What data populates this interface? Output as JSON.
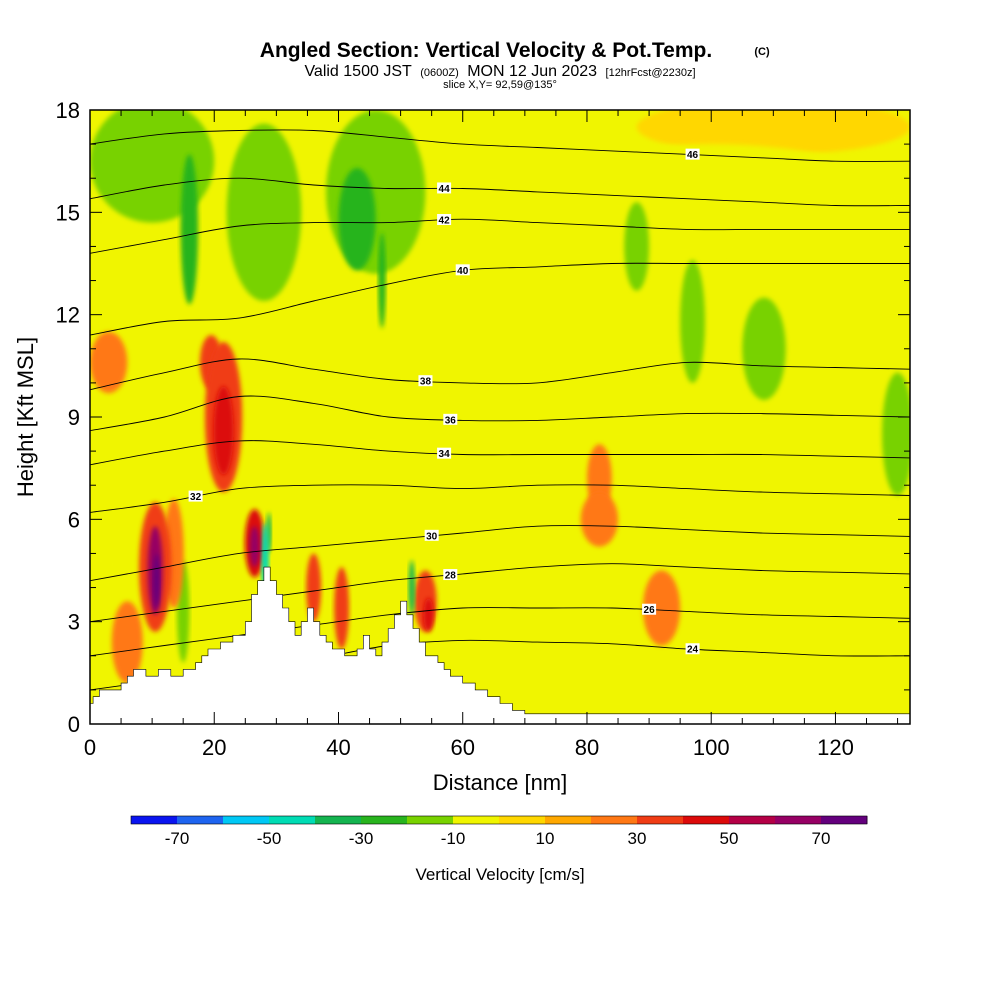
{
  "chart_data": {
    "type": "heatmap",
    "title": "Angled Section: Vertical Velocity & Pot.Temp.",
    "title_mark": "(C)",
    "subtitle": {
      "valid_time": "Valid 1500 JST",
      "utc": "(0600Z)",
      "date": "MON 12 Jun 2023",
      "forecast": "[12hrFcst@2230z]"
    },
    "slice_label": "slice X,Y= 92,59@135°",
    "xlabel": "Distance [nm]",
    "ylabel": "Height [Kft MSL]",
    "xlim": [
      0,
      132
    ],
    "ylim": [
      0,
      18
    ],
    "x_ticks": [
      "0",
      "20",
      "40",
      "60",
      "80",
      "100",
      "120"
    ],
    "x_tick_values": [
      0,
      20,
      40,
      60,
      80,
      100,
      120
    ],
    "y_ticks": [
      "0",
      "3",
      "6",
      "9",
      "12",
      "15",
      "18"
    ],
    "y_tick_values": [
      0,
      3,
      6,
      9,
      12,
      15,
      18
    ],
    "grid": false,
    "colorbar": {
      "label": "Vertical Velocity [cm/s]",
      "min": -80,
      "max": 80,
      "step": 10,
      "tick_labels": [
        "-70",
        "-50",
        "-30",
        "-10",
        "10",
        "30",
        "50",
        "70"
      ],
      "tick_values": [
        -70,
        -50,
        -30,
        -10,
        10,
        30,
        50,
        70
      ],
      "colors": [
        "#0a14f0",
        "#1e64f0",
        "#00c8f5",
        "#00dcb4",
        "#14b450",
        "#28b41e",
        "#78d200",
        "#f0f500",
        "#ffd700",
        "#ffa800",
        "#ff7814",
        "#f03c14",
        "#dc0a0a",
        "#b40046",
        "#960064",
        "#64007d"
      ]
    },
    "background_color": "#f0f500",
    "terrain": {
      "x": [
        0,
        0.5,
        0.5,
        1.5,
        1.5,
        5,
        5,
        6,
        6,
        7,
        7,
        9,
        9,
        11,
        11,
        13,
        13,
        15,
        15,
        17,
        17,
        18,
        18,
        19,
        19,
        21,
        21,
        23,
        23,
        25,
        25,
        26,
        26,
        27,
        27,
        28,
        28,
        29,
        29,
        30,
        30,
        31,
        31,
        32,
        32,
        33,
        33,
        34,
        34,
        35,
        35,
        36,
        36,
        37,
        37,
        38,
        38,
        39,
        39,
        41,
        41,
        43,
        43,
        44,
        44,
        45,
        45,
        46,
        46,
        47,
        47,
        48,
        48,
        49,
        49,
        50,
        50,
        51,
        51,
        52,
        52,
        53,
        53,
        54,
        54,
        56,
        56,
        57,
        57,
        58,
        58,
        60,
        60,
        62,
        62,
        64,
        64,
        66,
        66,
        68,
        68,
        70,
        70,
        71,
        71,
        72,
        72,
        132
      ],
      "y": [
        0.6,
        0.6,
        0.8,
        0.8,
        1.0,
        1.0,
        1.2,
        1.2,
        1.4,
        1.4,
        1.6,
        1.6,
        1.4,
        1.4,
        1.6,
        1.6,
        1.4,
        1.4,
        1.6,
        1.6,
        1.8,
        1.8,
        2.0,
        2.0,
        2.2,
        2.2,
        2.4,
        2.4,
        2.6,
        2.6,
        3.0,
        3.0,
        3.8,
        3.8,
        4.2,
        4.2,
        4.6,
        4.6,
        4.2,
        4.2,
        3.8,
        3.8,
        3.4,
        3.4,
        3.0,
        3.0,
        2.6,
        2.6,
        3.0,
        3.0,
        3.4,
        3.4,
        3.0,
        3.0,
        2.6,
        2.6,
        2.4,
        2.4,
        2.2,
        2.2,
        2.0,
        2.0,
        2.2,
        2.2,
        2.6,
        2.6,
        2.2,
        2.2,
        2.0,
        2.0,
        2.4,
        2.4,
        2.8,
        2.8,
        3.2,
        3.2,
        3.6,
        3.6,
        3.2,
        3.2,
        2.8,
        2.8,
        2.4,
        2.4,
        2.0,
        2.0,
        1.8,
        1.8,
        1.6,
        1.6,
        1.4,
        1.4,
        1.2,
        1.2,
        1.0,
        1.0,
        0.8,
        0.8,
        0.6,
        0.6,
        0.4,
        0.4,
        0.3,
        0.3,
        0.3,
        0.3,
        0.3,
        0.3
      ]
    },
    "vertical_velocity_blobs": [
      {
        "x": 10.5,
        "y": 4.6,
        "rx": 2.6,
        "ry": 1.9,
        "value": 35
      },
      {
        "x": 10.5,
        "y": 4.5,
        "rx": 1.2,
        "ry": 1.3,
        "value": 60
      },
      {
        "x": 10.7,
        "y": 4.2,
        "rx": 0.5,
        "ry": 0.8,
        "value": 75
      },
      {
        "x": 26.5,
        "y": 5.3,
        "rx": 1.6,
        "ry": 1.0,
        "value": 40
      },
      {
        "x": 26.5,
        "y": 5.2,
        "rx": 0.8,
        "ry": 0.6,
        "value": 65
      },
      {
        "x": 21.5,
        "y": 9.0,
        "rx": 3.0,
        "ry": 2.2,
        "value": 35
      },
      {
        "x": 21.5,
        "y": 8.6,
        "rx": 1.6,
        "ry": 1.3,
        "value": 45
      },
      {
        "x": 19.5,
        "y": 10.6,
        "rx": 1.8,
        "ry": 0.8,
        "value": 30
      },
      {
        "x": 6.0,
        "y": 2.4,
        "rx": 2.5,
        "ry": 1.2,
        "value": 25
      },
      {
        "x": 13.5,
        "y": 5.0,
        "rx": 1.6,
        "ry": 1.6,
        "value": 25
      },
      {
        "x": 36.0,
        "y": 4.0,
        "rx": 1.2,
        "ry": 1.0,
        "value": 30
      },
      {
        "x": 40.5,
        "y": 3.4,
        "rx": 1.2,
        "ry": 1.2,
        "value": 30
      },
      {
        "x": 54.0,
        "y": 3.6,
        "rx": 1.8,
        "ry": 0.9,
        "value": 30
      },
      {
        "x": 54.5,
        "y": 3.2,
        "rx": 0.8,
        "ry": 0.5,
        "value": 45
      },
      {
        "x": 3.0,
        "y": 10.6,
        "rx": 3.0,
        "ry": 0.9,
        "value": 25
      },
      {
        "x": 82.0,
        "y": 7.2,
        "rx": 2.0,
        "ry": 1.0,
        "value": 20
      },
      {
        "x": 82.0,
        "y": 6.0,
        "rx": 3.0,
        "ry": 0.8,
        "value": 20
      },
      {
        "x": 92.0,
        "y": 3.4,
        "rx": 3.0,
        "ry": 1.1,
        "value": 20
      },
      {
        "x": 15.0,
        "y": 3.3,
        "rx": 1.0,
        "ry": 1.5,
        "value": -20
      },
      {
        "x": 28.2,
        "y": 4.8,
        "rx": 0.6,
        "ry": 1.1,
        "value": -50
      },
      {
        "x": 28.8,
        "y": 5.6,
        "rx": 0.4,
        "ry": 0.6,
        "value": -35
      },
      {
        "x": 51.8,
        "y": 4.0,
        "rx": 0.5,
        "ry": 0.8,
        "value": -40
      },
      {
        "x": 47.0,
        "y": 13.0,
        "rx": 0.6,
        "ry": 1.4,
        "value": -30
      },
      {
        "x": 16.0,
        "y": 14.5,
        "rx": 1.4,
        "ry": 2.2,
        "value": -30
      },
      {
        "x": 43.0,
        "y": 14.8,
        "rx": 3.0,
        "ry": 1.5,
        "value": -25
      },
      {
        "x": 88.0,
        "y": 14.0,
        "rx": 2.0,
        "ry": 1.3,
        "value": -20
      },
      {
        "x": 97.0,
        "y": 11.8,
        "rx": 2.0,
        "ry": 1.8,
        "value": -20
      },
      {
        "x": 108.5,
        "y": 11.0,
        "rx": 3.5,
        "ry": 1.5,
        "value": -20
      },
      {
        "x": 130.0,
        "y": 8.5,
        "rx": 2.5,
        "ry": 1.8,
        "value": -20
      },
      {
        "x": 10.0,
        "y": 16.5,
        "rx": 10.0,
        "ry": 1.8,
        "value": -20
      },
      {
        "x": 28.0,
        "y": 15.0,
        "rx": 6.0,
        "ry": 2.6,
        "value": -20
      },
      {
        "x": 46.0,
        "y": 15.6,
        "rx": 8.0,
        "ry": 2.4,
        "value": -20
      },
      {
        "x": 70.0,
        "y": 15.5,
        "rx": 10.0,
        "ry": 2.5,
        "value": -10
      },
      {
        "x": 100.0,
        "y": 15.4,
        "rx": 30.0,
        "ry": 1.6,
        "value": -10
      },
      {
        "x": 66.0,
        "y": 12.0,
        "rx": 14.0,
        "ry": 1.6,
        "value": -10
      },
      {
        "x": 100.0,
        "y": 9.5,
        "rx": 30.0,
        "ry": 2.5,
        "value": -10
      },
      {
        "x": 95.0,
        "y": 6.2,
        "rx": 35.0,
        "ry": 1.4,
        "value": -10
      },
      {
        "x": 105.0,
        "y": 3.8,
        "rx": 25.0,
        "ry": 1.4,
        "value": -10
      },
      {
        "x": 118.0,
        "y": 1.3,
        "rx": 14.0,
        "ry": 0.9,
        "value": -10
      },
      {
        "x": 80.0,
        "y": 1.5,
        "rx": 8.0,
        "ry": 1.0,
        "value": -10
      },
      {
        "x": 10.0,
        "y": 7.0,
        "rx": 8.0,
        "ry": 2.0,
        "value": -10
      },
      {
        "x": 2.0,
        "y": 4.5,
        "rx": 2.5,
        "ry": 3.0,
        "value": -10
      },
      {
        "x": 32.0,
        "y": 7.0,
        "rx": 3.5,
        "ry": 1.2,
        "value": -10
      },
      {
        "x": 60.0,
        "y": 4.0,
        "rx": 4.0,
        "ry": 2.0,
        "value": -10
      },
      {
        "x": 110.0,
        "y": 17.5,
        "rx": 22.0,
        "ry": 0.8,
        "value": 5
      }
    ],
    "potential_temperature_contours": [
      {
        "level": "24",
        "label": "24",
        "label_x": 97,
        "y": [
          1.0,
          1.3,
          1.6,
          1.9,
          2.3,
          2.45,
          2.4,
          2.35,
          2.2,
          2.1,
          2.0,
          2.0
        ]
      },
      {
        "level": "26",
        "label": "26",
        "label_x": 90,
        "y": [
          2.0,
          2.3,
          2.6,
          2.9,
          3.2,
          3.4,
          3.4,
          3.4,
          3.3,
          3.2,
          3.15,
          3.1
        ]
      },
      {
        "level": "28",
        "label": "28",
        "label_x": 58,
        "y": [
          3.0,
          3.3,
          3.6,
          3.9,
          4.2,
          4.4,
          4.6,
          4.7,
          4.6,
          4.5,
          4.45,
          4.4
        ]
      },
      {
        "level": "30",
        "label": "30",
        "label_x": 55,
        "y": [
          4.2,
          4.6,
          5.0,
          5.2,
          5.4,
          5.6,
          5.8,
          5.8,
          5.7,
          5.6,
          5.55,
          5.5
        ]
      },
      {
        "level": "32",
        "label": "32",
        "label_x": 17,
        "y": [
          6.2,
          6.5,
          6.9,
          7.0,
          7.0,
          6.9,
          7.0,
          7.0,
          6.9,
          6.8,
          6.75,
          6.7
        ]
      },
      {
        "level": "34",
        "label": "34",
        "label_x": 57,
        "y": [
          7.6,
          8.0,
          8.3,
          8.2,
          8.0,
          7.9,
          7.9,
          7.9,
          7.9,
          7.9,
          7.85,
          7.8
        ]
      },
      {
        "level": "36",
        "label": "36",
        "label_x": 58,
        "y": [
          8.6,
          9.0,
          9.6,
          9.4,
          9.0,
          8.9,
          8.9,
          9.0,
          9.1,
          9.1,
          9.05,
          9.0
        ]
      },
      {
        "level": "38",
        "label": "38",
        "label_x": 54,
        "y": [
          9.8,
          10.3,
          10.7,
          10.4,
          10.1,
          10.0,
          10.0,
          10.3,
          10.6,
          10.5,
          10.45,
          10.4
        ]
      },
      {
        "level": "40",
        "label": "40",
        "label_x": 60,
        "y": [
          11.4,
          11.8,
          11.9,
          12.4,
          12.9,
          13.3,
          13.4,
          13.5,
          13.5,
          13.5,
          13.5,
          13.5
        ]
      },
      {
        "level": "42",
        "label": "42",
        "label_x": 57,
        "y": [
          13.8,
          14.2,
          14.6,
          14.7,
          14.7,
          14.8,
          14.7,
          14.6,
          14.5,
          14.5,
          14.5,
          14.5
        ]
      },
      {
        "level": "44",
        "label": "44",
        "label_x": 57,
        "y": [
          15.4,
          15.8,
          16.0,
          15.8,
          15.7,
          15.7,
          15.6,
          15.5,
          15.4,
          15.3,
          15.2,
          15.2
        ]
      },
      {
        "level": "46",
        "label": "46",
        "label_x": 97,
        "y": [
          17.0,
          17.3,
          17.4,
          17.4,
          17.2,
          17.0,
          16.9,
          16.8,
          16.7,
          16.6,
          16.5,
          16.5
        ]
      }
    ],
    "contour_x": [
      0,
      12,
      24,
      36,
      48,
      60,
      72,
      84,
      96,
      108,
      120,
      132
    ]
  }
}
